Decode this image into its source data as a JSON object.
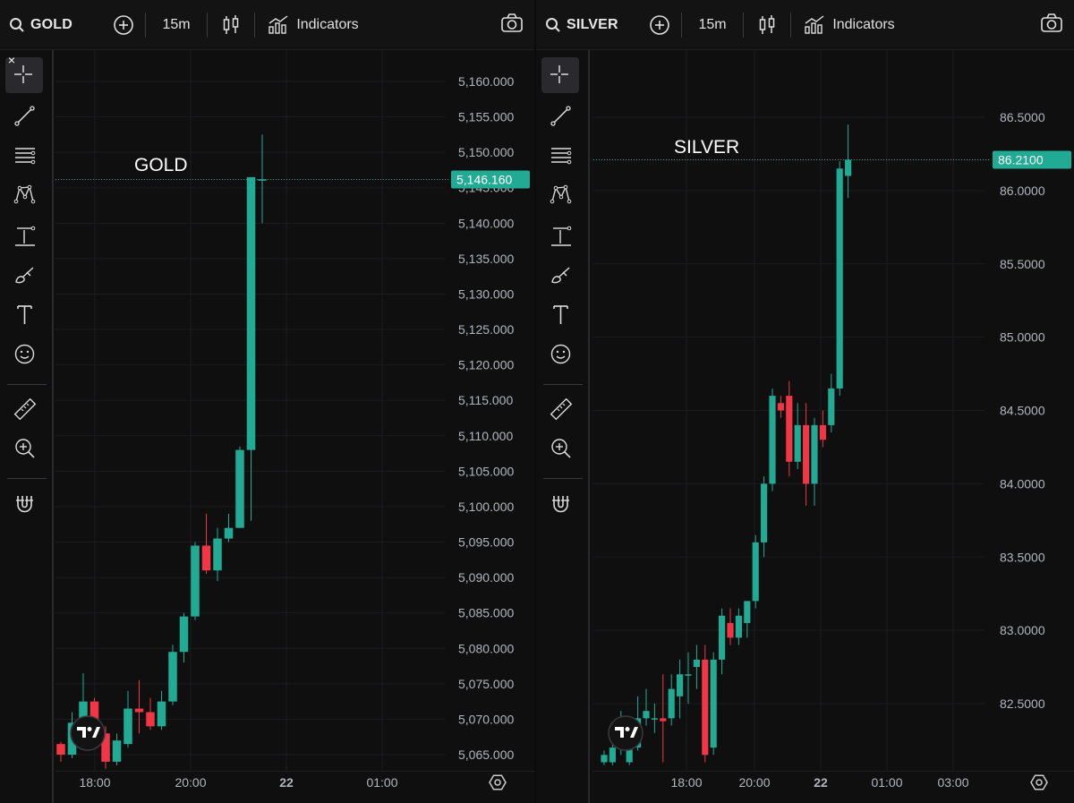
{
  "panels": [
    {
      "symbol": "GOLD",
      "interval": "15m",
      "indicators_label": "Indicators",
      "chart_data": {
        "type": "candlestick",
        "title": "GOLD",
        "price_label": "5,146.160",
        "current_price": 5146.16,
        "ylim": [
          5062,
          5164
        ],
        "yticks": [
          5065,
          5070,
          5075,
          5080,
          5085,
          5090,
          5095,
          5100,
          5105,
          5110,
          5115,
          5120,
          5125,
          5130,
          5135,
          5140,
          5145,
          5150,
          5155,
          5160
        ],
        "ytick_labels": [
          "5,065.000",
          "5,070.000",
          "5,075.000",
          "5,080.000",
          "5,085.000",
          "5,090.000",
          "5,095.000",
          "5,100.000",
          "5,105.000",
          "5,110.000",
          "5,115.000",
          "5,120.000",
          "5,125.000",
          "5,130.000",
          "5,135.000",
          "5,140.000",
          "5,145.000",
          "5,150.000",
          "5,155.000",
          "5,160.000"
        ],
        "xticks": [
          {
            "label": "18:00",
            "bold": false
          },
          {
            "label": "20:00",
            "bold": false
          },
          {
            "label": "22",
            "bold": true
          },
          {
            "label": "01:00",
            "bold": false
          }
        ],
        "candles": [
          [
            5066.5,
            5065.0,
            5066.8,
            5064.0
          ],
          [
            5065.0,
            5069.5,
            5071.0,
            5064.5
          ],
          [
            5069.5,
            5072.5,
            5076.5,
            5068.0
          ],
          [
            5072.5,
            5068.0,
            5073.0,
            5066.0
          ],
          [
            5068.0,
            5064.0,
            5069.0,
            5063.0
          ],
          [
            5064.0,
            5067.0,
            5068.0,
            5063.5
          ],
          [
            5066.5,
            5071.5,
            5074.0,
            5066.0
          ],
          [
            5071.5,
            5071.0,
            5075.5,
            5068.0
          ],
          [
            5071.0,
            5069.0,
            5073.0,
            5068.5
          ],
          [
            5069.0,
            5072.5,
            5074.0,
            5068.5
          ],
          [
            5072.5,
            5079.5,
            5080.5,
            5072.0
          ],
          [
            5079.5,
            5084.5,
            5085.0,
            5078.0
          ],
          [
            5084.5,
            5094.5,
            5095.0,
            5084.0
          ],
          [
            5094.5,
            5091.0,
            5099.0,
            5090.5
          ],
          [
            5091.0,
            5095.5,
            5097.0,
            5089.5
          ],
          [
            5095.5,
            5097.0,
            5099.0,
            5095.0
          ],
          [
            5097.0,
            5108.0,
            5108.5,
            5097.0
          ],
          [
            5108.0,
            5146.5,
            5146.5,
            5098.0
          ],
          [
            5146.0,
            5146.2,
            5152.5,
            5140.0
          ]
        ]
      }
    },
    {
      "symbol": "SILVER",
      "interval": "15m",
      "indicators_label": "Indicators",
      "chart_data": {
        "type": "candlestick",
        "title": "SILVER",
        "price_label": "86.2100",
        "current_price": 86.21,
        "ylim": [
          82.05,
          86.75
        ],
        "yticks": [
          82.5,
          83.0,
          83.5,
          84.0,
          84.5,
          85.0,
          85.5,
          86.0,
          86.5
        ],
        "ytick_labels": [
          "82.5000",
          "83.0000",
          "83.5000",
          "84.0000",
          "84.5000",
          "85.0000",
          "85.5000",
          "86.0000",
          "86.5000"
        ],
        "xticks": [
          {
            "label": "18:00",
            "bold": false
          },
          {
            "label": "20:00",
            "bold": false
          },
          {
            "label": "22",
            "bold": true
          },
          {
            "label": "01:00",
            "bold": false
          },
          {
            "label": "03:00",
            "bold": false
          }
        ],
        "candles": [
          [
            82.1,
            82.15,
            82.18,
            82.08
          ],
          [
            82.1,
            82.2,
            82.3,
            82.08
          ],
          [
            82.2,
            82.35,
            82.45,
            82.15
          ],
          [
            82.1,
            82.2,
            82.3,
            82.08
          ],
          [
            82.2,
            82.4,
            82.55,
            82.18
          ],
          [
            82.4,
            82.45,
            82.6,
            82.35
          ],
          [
            82.4,
            82.4,
            82.5,
            82.3
          ],
          [
            82.4,
            82.38,
            82.7,
            82.1
          ],
          [
            82.4,
            82.6,
            82.7,
            82.35
          ],
          [
            82.55,
            82.7,
            82.8,
            82.4
          ],
          [
            82.7,
            82.7,
            82.85,
            82.5
          ],
          [
            82.75,
            82.8,
            82.9,
            82.6
          ],
          [
            82.8,
            82.15,
            82.9,
            82.1
          ],
          [
            82.2,
            82.8,
            82.85,
            82.15
          ],
          [
            82.8,
            83.1,
            83.15,
            82.7
          ],
          [
            83.05,
            82.95,
            83.15,
            82.9
          ],
          [
            82.95,
            83.1,
            83.15,
            82.9
          ],
          [
            83.05,
            83.2,
            83.2,
            82.95
          ],
          [
            83.2,
            83.6,
            83.65,
            83.15
          ],
          [
            83.6,
            84.0,
            84.05,
            83.5
          ],
          [
            84.0,
            84.6,
            84.65,
            83.95
          ],
          [
            84.55,
            84.5,
            84.6,
            84.45
          ],
          [
            84.6,
            84.15,
            84.7,
            84.05
          ],
          [
            84.15,
            84.4,
            84.55,
            84.1
          ],
          [
            84.4,
            84.0,
            84.55,
            83.85
          ],
          [
            84.0,
            84.4,
            84.45,
            83.85
          ],
          [
            84.4,
            84.3,
            84.5,
            84.25
          ],
          [
            84.4,
            84.65,
            84.75,
            84.35
          ],
          [
            84.65,
            86.15,
            86.2,
            84.6
          ],
          [
            86.1,
            86.21,
            86.45,
            85.95
          ]
        ]
      }
    }
  ],
  "tools": [
    "crosshair-icon",
    "trend-line-icon",
    "fib-lines-icon",
    "pattern-icon",
    "measure-line-icon",
    "brush-icon",
    "text-icon",
    "emoji-icon",
    "ruler-icon",
    "zoom-in-icon",
    "magnet-icon"
  ],
  "colors": {
    "up": "#22ab94",
    "down": "#f23645",
    "bg": "#0f0f10",
    "grid": "#1c1c1f",
    "axis_text": "#b2b5be"
  },
  "close_symbol": "×"
}
